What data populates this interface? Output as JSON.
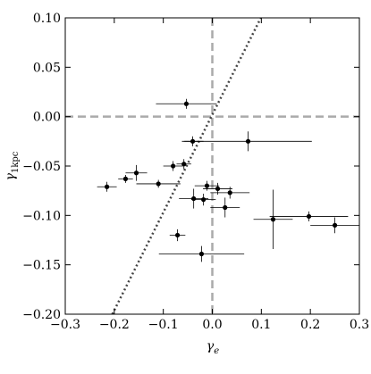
{
  "chart_data": {
    "type": "scatter",
    "xlabel": {
      "symbol": "γ",
      "subscript": "e"
    },
    "ylabel": {
      "symbol": "γ",
      "subscript": "1kpc"
    },
    "xlim": [
      -0.3,
      0.3
    ],
    "ylim": [
      -0.2,
      0.1
    ],
    "xticks": [
      {
        "value": -0.3,
        "label": "−0.3"
      },
      {
        "value": -0.2,
        "label": "−0.2"
      },
      {
        "value": -0.1,
        "label": "−0.1"
      },
      {
        "value": 0,
        "label": "0.0"
      },
      {
        "value": 0.1,
        "label": "0.1"
      },
      {
        "value": 0.2,
        "label": "0.2"
      },
      {
        "value": 0.3,
        "label": "0.3"
      }
    ],
    "yticks": [
      {
        "value": -0.2,
        "label": "−0.20"
      },
      {
        "value": -0.15,
        "label": "−0.15"
      },
      {
        "value": -0.1,
        "label": "−0.10"
      },
      {
        "value": -0.05,
        "label": "−0.05"
      },
      {
        "value": 0,
        "label": "0.00"
      },
      {
        "value": 0.05,
        "label": "0.05"
      },
      {
        "value": 0.1,
        "label": "0.10"
      }
    ],
    "hlines": [
      0
    ],
    "vlines": [
      0
    ],
    "reference_line_color": "#aaaaaa",
    "fit_line": {
      "x": [
        -0.204,
        0.099
      ],
      "values": [
        -0.2,
        0.1
      ],
      "color": "#444444"
    },
    "series": [
      {
        "color": "#000000",
        "x": [
          -0.053,
          -0.04,
          0.073,
          -0.215,
          -0.177,
          -0.155,
          -0.11,
          -0.08,
          -0.058,
          -0.011,
          0.011,
          -0.038,
          -0.018,
          0.036,
          0.026,
          0.124,
          0.197,
          0.25,
          -0.071,
          -0.022
        ],
        "values": [
          0.013,
          -0.025,
          -0.025,
          -0.071,
          -0.063,
          -0.057,
          -0.068,
          -0.05,
          -0.048,
          -0.07,
          -0.073,
          -0.083,
          -0.084,
          -0.077,
          -0.092,
          -0.104,
          -0.101,
          -0.11,
          -0.12,
          -0.139
        ],
        "xerr": [
          0.062,
          0.022,
          0.13,
          0.02,
          0.015,
          0.022,
          0.045,
          0.02,
          0.015,
          0.025,
          0.03,
          0.03,
          0.025,
          0.04,
          0.03,
          0.04,
          0.08,
          0.05,
          0.016,
          0.087
        ],
        "yerr": [
          0.005,
          0.005,
          0.01,
          0.005,
          0.004,
          0.008,
          0.004,
          0.005,
          0.005,
          0.005,
          0.006,
          0.01,
          0.006,
          0.006,
          0.01,
          0.03,
          0.005,
          0.008,
          0.006,
          0.008
        ]
      }
    ]
  }
}
